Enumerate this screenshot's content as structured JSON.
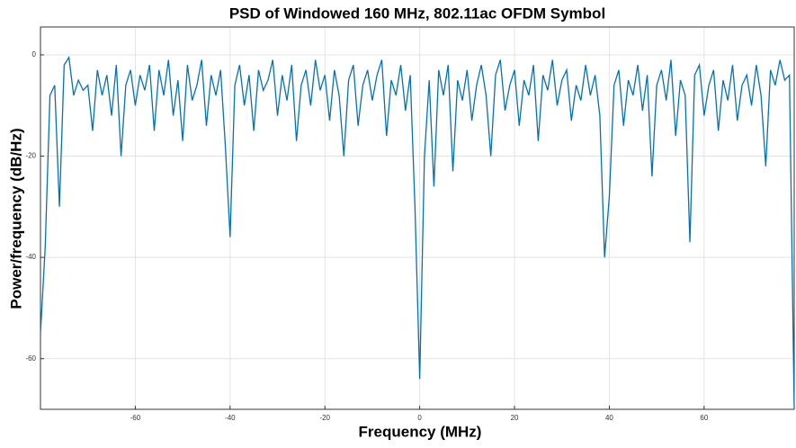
{
  "chart_data": {
    "type": "line",
    "title": "PSD of Windowed 160 MHz, 802.11ac OFDM Symbol",
    "xlabel": "Frequency (MHz)",
    "ylabel": "Power/frequency (dB/Hz)",
    "x": [
      -80,
      -79,
      -78,
      -77,
      -76,
      -75,
      -74,
      -73,
      -72,
      -71,
      -70,
      -69,
      -68,
      -67,
      -66,
      -65,
      -64,
      -63,
      -62,
      -61,
      -60,
      -59,
      -58,
      -57,
      -56,
      -55,
      -54,
      -53,
      -52,
      -51,
      -50,
      -49,
      -48,
      -47,
      -46,
      -45,
      -44,
      -43,
      -42,
      -41,
      -40,
      -39,
      -38,
      -37,
      -36,
      -35,
      -34,
      -33,
      -32,
      -31,
      -30,
      -29,
      -28,
      -27,
      -26,
      -25,
      -24,
      -23,
      -22,
      -21,
      -20,
      -19,
      -18,
      -17,
      -16,
      -15,
      -14,
      -13,
      -12,
      -11,
      -10,
      -9,
      -8,
      -7,
      -6,
      -5,
      -4,
      -3,
      -2,
      -1,
      0,
      1,
      2,
      3,
      4,
      5,
      6,
      7,
      8,
      9,
      10,
      11,
      12,
      13,
      14,
      15,
      16,
      17,
      18,
      19,
      20,
      21,
      22,
      23,
      24,
      25,
      26,
      27,
      28,
      29,
      30,
      31,
      32,
      33,
      34,
      35,
      36,
      37,
      38,
      39,
      40,
      41,
      42,
      43,
      44,
      45,
      46,
      47,
      48,
      49,
      50,
      51,
      52,
      53,
      54,
      55,
      56,
      57,
      58,
      59,
      60,
      61,
      62,
      63,
      64,
      65,
      66,
      67,
      68,
      69,
      70,
      71,
      72,
      73,
      74,
      75,
      76,
      77,
      78,
      79
    ],
    "series": [
      {
        "name": "PSD",
        "color": "#0072bd",
        "values": [
          -55,
          -38,
          -8,
          -6,
          -30,
          -2,
          -0.5,
          -8,
          -5,
          -7,
          -6,
          -15,
          -3,
          -8,
          -4,
          -12,
          -2,
          -20,
          -6,
          -3,
          -10,
          -4,
          -7,
          -2,
          -15,
          -3,
          -8,
          -1,
          -12,
          -5,
          -17,
          -2,
          -9,
          -6,
          -1,
          -14,
          -4,
          -8,
          -3,
          -18,
          -36,
          -6,
          -2,
          -10,
          -4,
          -15,
          -3,
          -7,
          -5,
          -1,
          -12,
          -4,
          -9,
          -2,
          -17,
          -6,
          -3,
          -10,
          -1,
          -7,
          -4,
          -13,
          -3,
          -8,
          -20,
          -5,
          -2,
          -14,
          -6,
          -3,
          -9,
          -4,
          -1,
          -16,
          -5,
          -8,
          -2,
          -11,
          -4,
          -30,
          -64,
          -20,
          -5,
          -26,
          -3,
          -8,
          -2,
          -23,
          -5,
          -9,
          -3,
          -13,
          -6,
          -2,
          -8,
          -20,
          -4,
          -1,
          -11,
          -6,
          -3,
          -14,
          -5,
          -8,
          -2,
          -17,
          -4,
          -7,
          -1,
          -10,
          -5,
          -3,
          -13,
          -6,
          -9,
          -2,
          -8,
          -4,
          -12,
          -40,
          -28,
          -6,
          -3,
          -14,
          -5,
          -8,
          -2,
          -11,
          -4,
          -24,
          -6,
          -3,
          -9,
          -1,
          -16,
          -5,
          -8,
          -37,
          -4,
          -2,
          -12,
          -6,
          -3,
          -15,
          -5,
          -9,
          -2,
          -13,
          -6,
          -4,
          -10,
          -2,
          -8,
          -22,
          -3,
          -6,
          -1,
          -5,
          -4,
          -70
        ]
      }
    ],
    "xlim": [
      -80,
      79
    ],
    "ylim": [
      -70,
      5.5
    ],
    "xticks": [
      -60,
      -40,
      -20,
      0,
      20,
      40,
      60
    ],
    "yticks": [
      -60,
      -40,
      -20,
      0
    ],
    "grid": true
  }
}
